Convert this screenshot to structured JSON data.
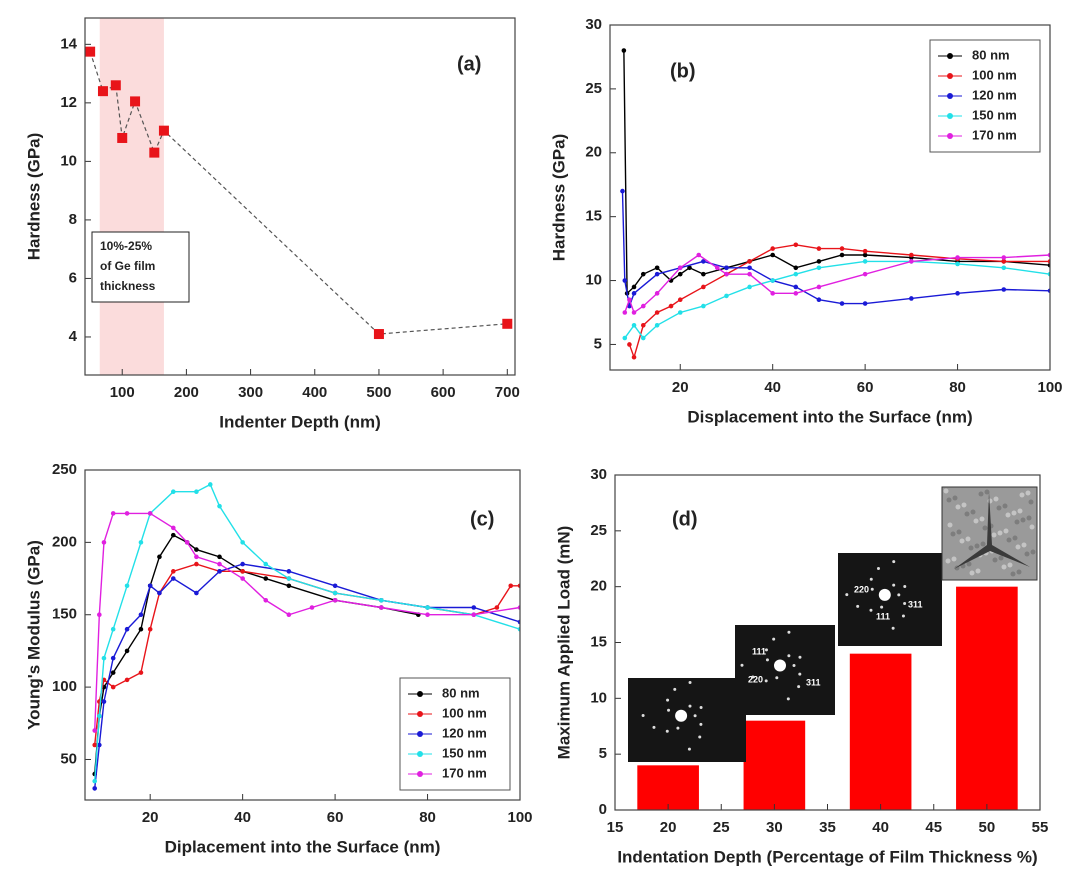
{
  "chart_data": [
    {
      "type": "line",
      "panel_label": "(a)",
      "xlabel": "Indenter Depth (nm)",
      "ylabel": "Hardness (GPa)",
      "x": [
        50,
        70,
        90,
        100,
        120,
        150,
        165,
        500,
        700
      ],
      "values": [
        13.75,
        12.4,
        12.6,
        10.8,
        12.05,
        10.3,
        11.05,
        4.1,
        4.45
      ],
      "color": "#e8141a",
      "marker": "square",
      "line_color": "#555555",
      "line_style": "dashed",
      "shade_x": [
        65,
        165
      ],
      "shade_color": "#fbdcdc",
      "note": [
        "10%-25%",
        "of  Ge film",
        "thickness"
      ],
      "xlim": [
        42,
        712
      ],
      "xticks": [
        100,
        200,
        300,
        400,
        500,
        600,
        700
      ],
      "ylim": [
        2.7,
        14.9
      ],
      "yticks": [
        4,
        6,
        8,
        10,
        12,
        14
      ]
    },
    {
      "type": "line",
      "panel_label": "(b)",
      "xlabel": "Displacement into the Surface (nm)",
      "ylabel": "Hardness (GPa)",
      "legend": "top-right",
      "series": [
        {
          "name": "80 nm",
          "color": "#000000",
          "x": [
            7.8,
            8.5,
            10,
            12,
            15,
            18,
            20,
            22,
            25,
            30,
            35,
            40,
            45,
            50,
            55,
            60,
            70,
            80,
            90,
            100
          ],
          "values": [
            28,
            9,
            9.5,
            10.5,
            11,
            10,
            10.5,
            11,
            10.5,
            11,
            11.5,
            12,
            11,
            11.5,
            12,
            12,
            11.8,
            11.5,
            11.5,
            11.2
          ]
        },
        {
          "name": "100 nm",
          "color": "#e8141a",
          "x": [
            9,
            10,
            12,
            15,
            18,
            20,
            25,
            30,
            35,
            40,
            45,
            50,
            55,
            60,
            70,
            80,
            90,
            100
          ],
          "values": [
            5,
            4,
            6.5,
            7.5,
            8,
            8.5,
            9.5,
            10.5,
            11.5,
            12.5,
            12.8,
            12.5,
            12.5,
            12.3,
            12,
            11.7,
            11.5,
            11.5
          ]
        },
        {
          "name": "120 nm",
          "color": "#1a1ad6",
          "x": [
            7.5,
            8,
            9,
            10,
            15,
            20,
            25,
            30,
            35,
            40,
            45,
            50,
            55,
            60,
            70,
            80,
            90,
            100
          ],
          "values": [
            17,
            10,
            8,
            9,
            10.5,
            11,
            11.5,
            11,
            11,
            10,
            9.5,
            8.5,
            8.2,
            8.2,
            8.6,
            9,
            9.3,
            9.2
          ]
        },
        {
          "name": "150 nm",
          "color": "#22e0e8",
          "x": [
            8,
            10,
            12,
            15,
            20,
            25,
            30,
            35,
            40,
            45,
            50,
            60,
            70,
            80,
            90,
            100
          ],
          "values": [
            5.5,
            6.5,
            5.5,
            6.5,
            7.5,
            8,
            8.8,
            9.5,
            10,
            10.5,
            11,
            11.5,
            11.5,
            11.3,
            11,
            10.5
          ]
        },
        {
          "name": "170 nm",
          "color": "#e020e0",
          "x": [
            8,
            9,
            10,
            12,
            15,
            20,
            24,
            28,
            30,
            35,
            40,
            45,
            50,
            60,
            70,
            80,
            90,
            100
          ],
          "values": [
            7.5,
            8.5,
            7.5,
            8,
            9,
            11,
            12,
            11,
            10.5,
            10.5,
            9,
            9,
            9.5,
            10.5,
            11.5,
            11.8,
            11.8,
            12
          ]
        }
      ],
      "xlim": [
        4.8,
        100
      ],
      "xticks": [
        20,
        40,
        60,
        80,
        100
      ],
      "ylim": [
        3,
        30
      ],
      "yticks": [
        5,
        10,
        15,
        20,
        25,
        30
      ]
    },
    {
      "type": "line",
      "panel_label": "(c)",
      "xlabel": "Diplacement into the Surface (nm)",
      "ylabel": "Young's Modulus (GPa)",
      "legend": "bottom-right",
      "series": [
        {
          "name": "80 nm",
          "color": "#000000",
          "x": [
            8,
            9,
            10,
            12,
            15,
            18,
            20,
            22,
            25,
            28,
            30,
            35,
            40,
            45,
            50,
            60,
            70,
            78
          ],
          "values": [
            40,
            80,
            100,
            110,
            125,
            140,
            170,
            190,
            205,
            200,
            195,
            190,
            180,
            175,
            170,
            160,
            155,
            150
          ]
        },
        {
          "name": "100 nm",
          "color": "#e8141a",
          "x": [
            8,
            9,
            10,
            12,
            15,
            18,
            20,
            22,
            25,
            30,
            35,
            40,
            50,
            60,
            70,
            80,
            90,
            95,
            98,
            100
          ],
          "values": [
            60,
            90,
            105,
            100,
            105,
            110,
            140,
            165,
            180,
            185,
            180,
            180,
            175,
            165,
            160,
            155,
            150,
            155,
            170,
            170
          ]
        },
        {
          "name": "120 nm",
          "color": "#1a1ad6",
          "x": [
            8,
            9,
            10,
            12,
            15,
            18,
            20,
            22,
            25,
            30,
            35,
            40,
            50,
            60,
            70,
            80,
            90,
            100
          ],
          "values": [
            30,
            60,
            90,
            120,
            140,
            150,
            170,
            165,
            175,
            165,
            180,
            185,
            180,
            170,
            160,
            155,
            155,
            145
          ]
        },
        {
          "name": "150 nm",
          "color": "#22e0e8",
          "x": [
            8,
            9,
            10,
            12,
            15,
            18,
            20,
            25,
            30,
            33,
            35,
            40,
            45,
            50,
            60,
            70,
            80,
            90,
            100
          ],
          "values": [
            35,
            80,
            120,
            140,
            170,
            200,
            220,
            235,
            235,
            240,
            225,
            200,
            185,
            175,
            165,
            160,
            155,
            150,
            140
          ]
        },
        {
          "name": "170 nm",
          "color": "#e020e0",
          "x": [
            8,
            9,
            10,
            12,
            15,
            20,
            25,
            28,
            30,
            35,
            40,
            45,
            50,
            55,
            60,
            70,
            80,
            90,
            100
          ],
          "values": [
            70,
            150,
            200,
            220,
            220,
            220,
            210,
            200,
            190,
            185,
            175,
            160,
            150,
            155,
            160,
            155,
            150,
            150,
            155
          ]
        }
      ],
      "xlim": [
        5.9,
        100
      ],
      "xticks": [
        20,
        40,
        60,
        80,
        100
      ],
      "ylim": [
        22,
        250
      ],
      "yticks": [
        50,
        100,
        150,
        200,
        250
      ]
    },
    {
      "type": "bar",
      "panel_label": "(d)",
      "xlabel": "Indentation Depth (Percentage of Film Thickness %)",
      "ylabel": "Maximum Applied Load (mN)",
      "x": [
        20,
        30,
        40,
        50
      ],
      "values": [
        4,
        8,
        14,
        20
      ],
      "color": "#ff0000",
      "insets": [
        {
          "labels": []
        },
        {
          "labels": [
            "111",
            "220",
            "311"
          ]
        },
        {
          "labels": [
            "220",
            "111",
            "311"
          ]
        },
        {
          "labels": []
        }
      ],
      "xlim": [
        15,
        55
      ],
      "xticks": [
        15,
        20,
        25,
        30,
        35,
        40,
        45,
        50,
        55
      ],
      "ylim": [
        0,
        30
      ],
      "yticks": [
        0,
        5,
        10,
        15,
        20,
        25,
        30
      ]
    }
  ]
}
